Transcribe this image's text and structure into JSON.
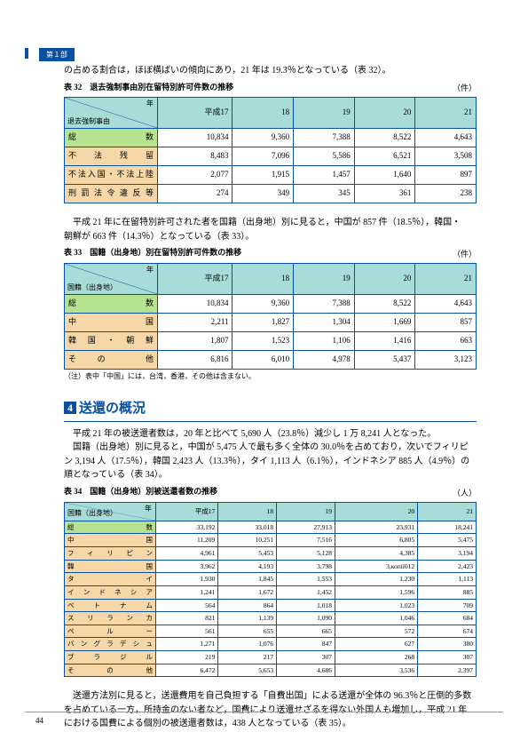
{
  "part_tab": "第１部",
  "intro_text": "の占める割合は，ほぼ横ばいの傾向にあり，21 年は 19.3％となっている（表 32）。",
  "t32": {
    "caption": "表 32　退去強制事由別在留特別許可件数の推移",
    "unit": "（件）",
    "diag_year": "年",
    "diag_cat": "退去強制事由",
    "years": [
      "平成17",
      "18",
      "19",
      "20",
      "21"
    ],
    "rows": [
      {
        "label": "総　　　　　　　数",
        "cls": "rowlabel-total",
        "v": [
          "10,834",
          "9,360",
          "7,388",
          "8,522",
          "4,643"
        ]
      },
      {
        "label": "不　　法　　残　　留",
        "cls": "rowlabel",
        "v": [
          "8,483",
          "7,096",
          "5,586",
          "6,521",
          "3,508"
        ]
      },
      {
        "label": "不法入国・不法上陸",
        "cls": "rowlabel",
        "v": [
          "2,077",
          "1,915",
          "1,457",
          "1,640",
          "897"
        ]
      },
      {
        "label": "刑 罰 法 令 違 反 等",
        "cls": "rowlabel",
        "v": [
          "274",
          "349",
          "345",
          "361",
          "238"
        ]
      }
    ]
  },
  "para2a": "　平成 21 年に在留特別許可された者を国籍（出身地）別に見ると，中国が 857 件（18.5％），韓国・",
  "para2b": "朝鮮が 663 件（14.3％）となっている（表 33）。",
  "t33": {
    "caption": "表 33　国籍（出身地）別在留特別許可件数の推移",
    "unit": "（件）",
    "diag_year": "年",
    "diag_cat": "国籍（出身地）",
    "years": [
      "平成17",
      "18",
      "19",
      "20",
      "21"
    ],
    "rows": [
      {
        "label": "総　　　　　　　数",
        "cls": "rowlabel-total",
        "v": [
          "10,834",
          "9,360",
          "7,388",
          "8,522",
          "4,643"
        ]
      },
      {
        "label": "中　　　　　　　国",
        "cls": "rowlabel",
        "v": [
          "2,211",
          "1,827",
          "1,304",
          "1,669",
          "857"
        ]
      },
      {
        "label": "韓　国　・　朝　鮮",
        "cls": "rowlabel",
        "v": [
          "1,807",
          "1,523",
          "1,106",
          "1,416",
          "663"
        ]
      },
      {
        "label": "そ　　の　　　　他",
        "cls": "rowlabel",
        "v": [
          "6,816",
          "6,010",
          "4,978",
          "5,437",
          "3,123"
        ]
      }
    ],
    "note": "（注）表中「中国」には，台湾，香港，その他は含まない。"
  },
  "sec4_num": "4",
  "sec4_title": "送還の概況",
  "sec4_p": [
    "　平成 21 年の被送還者数は，20 年と比べて 5,690 人（23.8％）減少し 1 万 8,241 人となった。",
    "　国籍（出身地）別に見ると，中国が 5,475 人で最も多く全体の 30.0％を占めており，次いでフィリピ",
    "ン 3,194 人（17.5％），韓国 2,423 人（13.3％），タイ 1,113 人（6.1％），インドネシア 885 人（4.9％）の",
    "順となっている（表 34）。"
  ],
  "t34": {
    "caption": "表 34　国籍（出身地）別被送還者数の推移",
    "unit": "（人）",
    "diag_year": "年",
    "diag_cat": "国籍（出身地）",
    "years": [
      "平成17",
      "18",
      "19",
      "20",
      "21"
    ],
    "rows": [
      {
        "label": "総　　　　　　　数",
        "cls": "rowlabel-total",
        "v": [
          "33,192",
          "33,018",
          "27,913",
          "23,931",
          "18,241"
        ]
      },
      {
        "label": "中　　　　　　　国",
        "cls": "rowlabel",
        "v": [
          "11,209",
          "10,251",
          "7,516",
          "6,805",
          "5,475"
        ]
      },
      {
        "label": "フ　ィ　リ　ピ　ン",
        "cls": "rowlabel",
        "v": [
          "4,961",
          "5,453",
          "5,128",
          "4,385",
          "3,194"
        ]
      },
      {
        "label": "韓　　　　　　　国",
        "cls": "rowlabel",
        "v": [
          "3,962",
          "4,193",
          "3,798",
          "3,копії012",
          "2,423"
        ]
      },
      {
        "label": "タ　　　　　　　イ",
        "cls": "rowlabel",
        "v": [
          "1,930",
          "1,845",
          "1,553",
          "1,230",
          "1,113"
        ]
      },
      {
        "label": "イ ン ド ネ シ ア",
        "cls": "rowlabel",
        "v": [
          "1,241",
          "1,672",
          "1,452",
          "1,596",
          "885"
        ]
      },
      {
        "label": "ベ　ト　ナ　ム",
        "cls": "rowlabel",
        "v": [
          "564",
          "864",
          "1,018",
          "1,023",
          "709"
        ]
      },
      {
        "label": "ス リ ラ ン カ",
        "cls": "rowlabel",
        "v": [
          "821",
          "1,139",
          "1,090",
          "1,046",
          "684"
        ]
      },
      {
        "label": "ペ　　ル　　ー",
        "cls": "rowlabel",
        "v": [
          "561",
          "655",
          "665",
          "572",
          "674"
        ]
      },
      {
        "label": "バ ン グ ラ デ シ ュ",
        "cls": "rowlabel",
        "v": [
          "1,271",
          "1,076",
          "847",
          "627",
          "380"
        ]
      },
      {
        "label": "ブ　ラ　ジ　ル",
        "cls": "rowlabel",
        "v": [
          "219",
          "217",
          "307",
          "268",
          "307"
        ]
      },
      {
        "label": "そ　　の　　他",
        "cls": "rowlabel",
        "v": [
          "6,472",
          "5,653",
          "4,686",
          "3,536",
          "2,397"
        ]
      }
    ]
  },
  "closing": [
    "　送還方法別に見ると，送還費用を自己負担する「自費出国」による送還が全体の 96.3％と圧倒的多数",
    "を占めている一方，所持金のない者など，国費により送還せざるを得ない外国人も増加し，平成 21 年",
    "における国費による個別の被送還者数は，438 人となっている（表 35）。"
  ],
  "page_number": "44",
  "colors": {
    "border": "#0a50a0",
    "head_bg": "#a8dcd8",
    "total_bg": "#b7e28f",
    "row_bg": "#f5d7a8"
  }
}
